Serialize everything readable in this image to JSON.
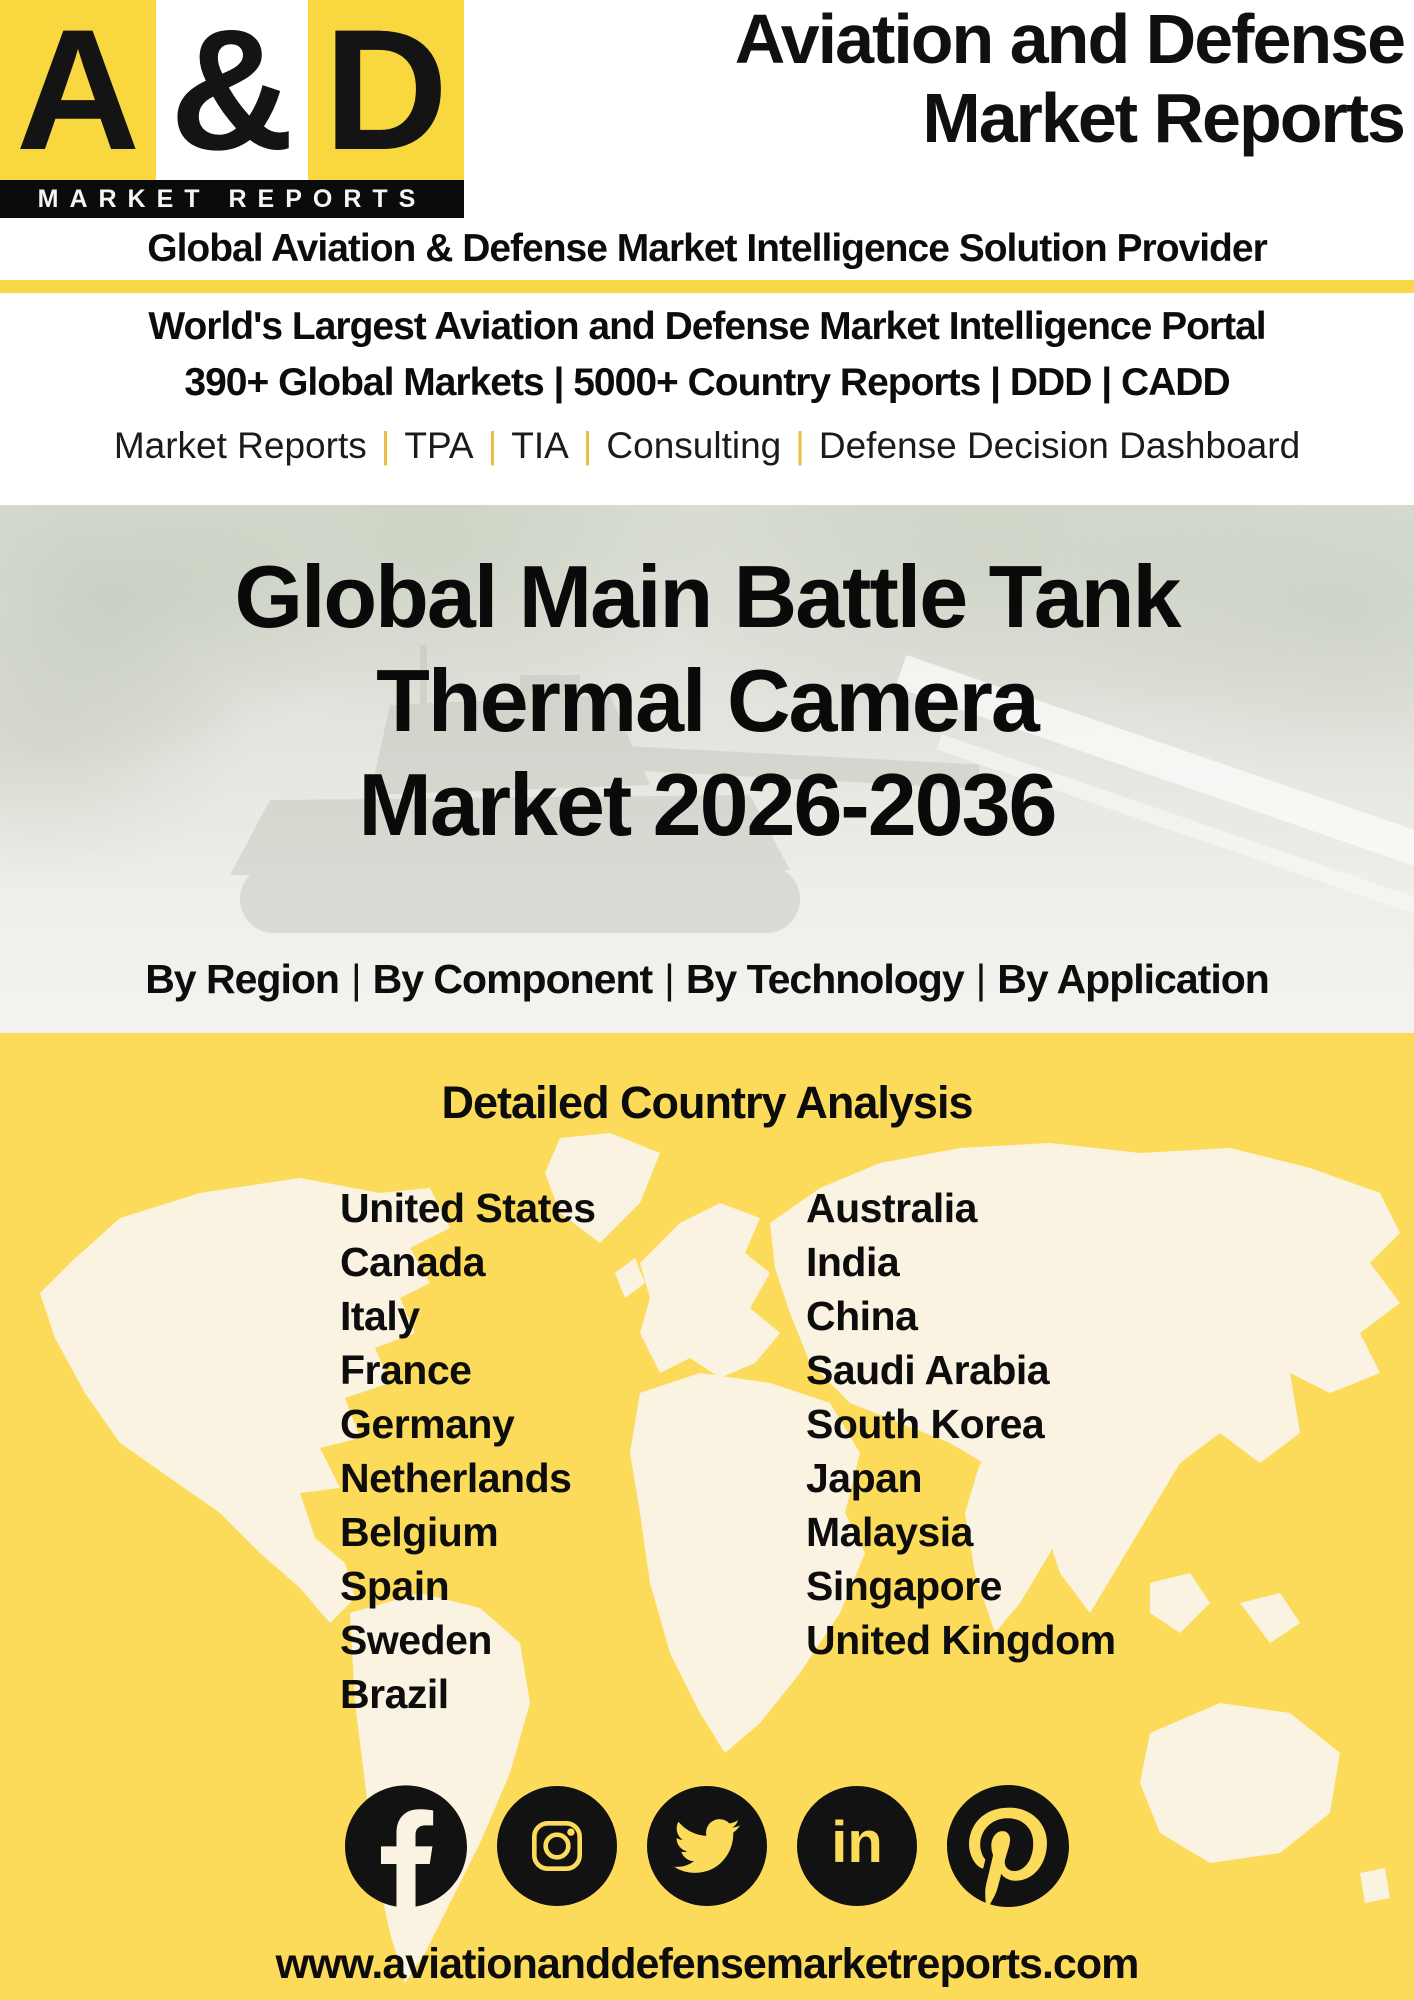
{
  "logo": {
    "letter_a": "A",
    "ampersand": "&",
    "letter_d": "D",
    "bar_text": "MARKET REPORTS"
  },
  "header": {
    "title_line1": "Aviation and Defense",
    "title_line2": "Market Reports"
  },
  "tagline": "Global Aviation & Defense Market Intelligence Solution Provider",
  "intro": {
    "line1": "World's Largest Aviation and Defense Market Intelligence Portal",
    "line2": "390+ Global Markets | 5000+ Country Reports | DDD | CADD",
    "services": [
      "Market Reports",
      "TPA",
      "TIA",
      "Consulting",
      "Defense Decision Dashboard"
    ],
    "separator": "|"
  },
  "hero": {
    "title_line1": "Global Main Battle Tank",
    "title_line2": "Thermal Camera",
    "title_line3": "Market 2026-2036",
    "segments": [
      "By Region",
      "By Component",
      "By Technology",
      "By Application"
    ],
    "separator": "|"
  },
  "countries": {
    "heading": "Detailed Country Analysis",
    "left": [
      "United States",
      "Canada",
      "Italy",
      "France",
      "Germany",
      "Netherlands",
      "Belgium",
      "Spain",
      "Sweden",
      "Brazil"
    ],
    "right": [
      "Australia",
      "India",
      "China",
      "Saudi Arabia",
      "South Korea",
      "Japan",
      "Malaysia",
      "Singapore",
      "United Kingdom"
    ]
  },
  "social": {
    "icons": [
      "facebook",
      "instagram",
      "twitter",
      "linkedin",
      "pinterest"
    ]
  },
  "footer": {
    "website": "www.aviationanddefensemarketreports.com"
  },
  "colors": {
    "yellow_main": "#FDDB5A",
    "yellow_logo": "#F8D73F",
    "yellow_strip": "#F9D74B",
    "separator_gold": "#E9BE45",
    "map_cream": "#FBF3E2",
    "ink": "#111111"
  }
}
